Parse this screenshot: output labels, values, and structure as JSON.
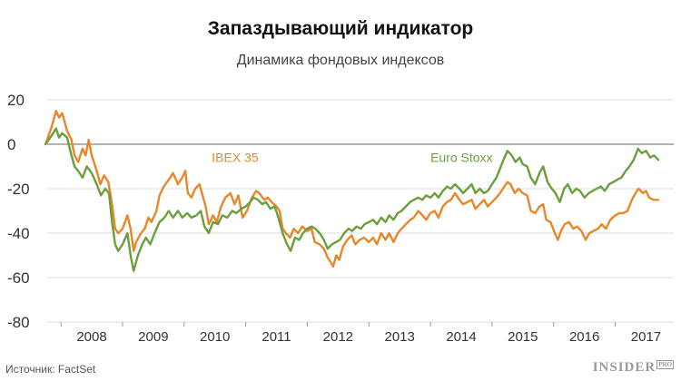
{
  "header": {
    "title": "Запаздывающий индикатор",
    "subtitle": "Динамика фондовых индексов"
  },
  "footer": {
    "source": "Источник: FactSet",
    "brand": "INSIDER",
    "brand_suffix": "PRO"
  },
  "chart_data": {
    "type": "line",
    "title": "Запаздывающий индикатор",
    "subtitle": "Динамика фондовых индексов",
    "xlabel": "",
    "ylabel": "",
    "xlim": [
      2007.6,
      2017.95
    ],
    "ylim": [
      -80,
      20
    ],
    "y_ticks": [
      20,
      0,
      -20,
      -40,
      -60,
      -80
    ],
    "x_ticks": [
      "2008",
      "2009",
      "2010",
      "2011",
      "2012",
      "2013",
      "2014",
      "2015",
      "2016",
      "2017"
    ],
    "grid": true,
    "series": [
      {
        "name": "IBEX 35",
        "color": "#e8862a",
        "points": [
          [
            2007.75,
            0
          ],
          [
            2007.85,
            8
          ],
          [
            2007.92,
            15
          ],
          [
            2007.97,
            12
          ],
          [
            2008.02,
            14
          ],
          [
            2008.1,
            6
          ],
          [
            2008.17,
            2
          ],
          [
            2008.22,
            -5
          ],
          [
            2008.28,
            -8
          ],
          [
            2008.35,
            -2
          ],
          [
            2008.4,
            -5
          ],
          [
            2008.45,
            2
          ],
          [
            2008.5,
            -5
          ],
          [
            2008.58,
            -12
          ],
          [
            2008.64,
            -18
          ],
          [
            2008.7,
            -14
          ],
          [
            2008.77,
            -17
          ],
          [
            2008.83,
            -27
          ],
          [
            2008.88,
            -38
          ],
          [
            2008.93,
            -40
          ],
          [
            2009.0,
            -38
          ],
          [
            2009.08,
            -32
          ],
          [
            2009.13,
            -38
          ],
          [
            2009.18,
            -48
          ],
          [
            2009.22,
            -44
          ],
          [
            2009.3,
            -40
          ],
          [
            2009.36,
            -38
          ],
          [
            2009.42,
            -33
          ],
          [
            2009.47,
            -35
          ],
          [
            2009.55,
            -30
          ],
          [
            2009.6,
            -23
          ],
          [
            2009.67,
            -19
          ],
          [
            2009.75,
            -16
          ],
          [
            2009.82,
            -13
          ],
          [
            2009.9,
            -18
          ],
          [
            2009.97,
            -15
          ],
          [
            2010.02,
            -12
          ],
          [
            2010.06,
            -22
          ],
          [
            2010.12,
            -24
          ],
          [
            2010.18,
            -20
          ],
          [
            2010.25,
            -18
          ],
          [
            2010.3,
            -23
          ],
          [
            2010.35,
            -28
          ],
          [
            2010.4,
            -36
          ],
          [
            2010.47,
            -32
          ],
          [
            2010.53,
            -35
          ],
          [
            2010.6,
            -28
          ],
          [
            2010.67,
            -24
          ],
          [
            2010.75,
            -22
          ],
          [
            2010.82,
            -27
          ],
          [
            2010.88,
            -23
          ],
          [
            2010.95,
            -33
          ],
          [
            2011.02,
            -30
          ],
          [
            2011.1,
            -24
          ],
          [
            2011.17,
            -21
          ],
          [
            2011.22,
            -22
          ],
          [
            2011.3,
            -25
          ],
          [
            2011.36,
            -24
          ],
          [
            2011.42,
            -26
          ],
          [
            2011.5,
            -28
          ],
          [
            2011.55,
            -30
          ],
          [
            2011.6,
            -38
          ],
          [
            2011.65,
            -40
          ],
          [
            2011.72,
            -42
          ],
          [
            2011.78,
            -38
          ],
          [
            2011.85,
            -40
          ],
          [
            2011.92,
            -37
          ],
          [
            2012.0,
            -39
          ],
          [
            2012.07,
            -38
          ],
          [
            2012.12,
            -44
          ],
          [
            2012.2,
            -45
          ],
          [
            2012.27,
            -47
          ],
          [
            2012.33,
            -51
          ],
          [
            2012.38,
            -53
          ],
          [
            2012.42,
            -55
          ],
          [
            2012.47,
            -50
          ],
          [
            2012.52,
            -52
          ],
          [
            2012.58,
            -46
          ],
          [
            2012.65,
            -43
          ],
          [
            2012.72,
            -41
          ],
          [
            2012.78,
            -45
          ],
          [
            2012.85,
            -43
          ],
          [
            2012.92,
            -42
          ],
          [
            2013.0,
            -44
          ],
          [
            2013.07,
            -42
          ],
          [
            2013.13,
            -45
          ],
          [
            2013.2,
            -40
          ],
          [
            2013.27,
            -43
          ],
          [
            2013.33,
            -40
          ],
          [
            2013.4,
            -44
          ],
          [
            2013.47,
            -40
          ],
          [
            2013.53,
            -38
          ],
          [
            2013.6,
            -36
          ],
          [
            2013.67,
            -34
          ],
          [
            2013.73,
            -33
          ],
          [
            2013.8,
            -30
          ],
          [
            2013.87,
            -32
          ],
          [
            2013.93,
            -34
          ],
          [
            2014.0,
            -31
          ],
          [
            2014.07,
            -30
          ],
          [
            2014.13,
            -33
          ],
          [
            2014.2,
            -28
          ],
          [
            2014.27,
            -26
          ],
          [
            2014.33,
            -25
          ],
          [
            2014.4,
            -22
          ],
          [
            2014.47,
            -25
          ],
          [
            2014.53,
            -27
          ],
          [
            2014.6,
            -26
          ],
          [
            2014.67,
            -25
          ],
          [
            2014.73,
            -29
          ],
          [
            2014.8,
            -27
          ],
          [
            2014.87,
            -25
          ],
          [
            2014.93,
            -28
          ],
          [
            2015.0,
            -26
          ],
          [
            2015.07,
            -24
          ],
          [
            2015.13,
            -22
          ],
          [
            2015.2,
            -19
          ],
          [
            2015.25,
            -17
          ],
          [
            2015.3,
            -18
          ],
          [
            2015.37,
            -22
          ],
          [
            2015.43,
            -20
          ],
          [
            2015.5,
            -22
          ],
          [
            2015.57,
            -23
          ],
          [
            2015.63,
            -30
          ],
          [
            2015.7,
            -31
          ],
          [
            2015.77,
            -28
          ],
          [
            2015.83,
            -27
          ],
          [
            2015.88,
            -34
          ],
          [
            2015.95,
            -35
          ],
          [
            2016.02,
            -40
          ],
          [
            2016.07,
            -43
          ],
          [
            2016.12,
            -39
          ],
          [
            2016.18,
            -36
          ],
          [
            2016.25,
            -35
          ],
          [
            2016.32,
            -38
          ],
          [
            2016.38,
            -37
          ],
          [
            2016.45,
            -39
          ],
          [
            2016.52,
            -43
          ],
          [
            2016.58,
            -40
          ],
          [
            2016.65,
            -39
          ],
          [
            2016.72,
            -38
          ],
          [
            2016.78,
            -36
          ],
          [
            2016.85,
            -38
          ],
          [
            2016.92,
            -34
          ],
          [
            2017.0,
            -32
          ],
          [
            2017.07,
            -31
          ],
          [
            2017.13,
            -31
          ],
          [
            2017.2,
            -30
          ],
          [
            2017.27,
            -25
          ],
          [
            2017.33,
            -22
          ],
          [
            2017.38,
            -20
          ],
          [
            2017.45,
            -22
          ],
          [
            2017.5,
            -21
          ],
          [
            2017.55,
            -24
          ],
          [
            2017.62,
            -25
          ],
          [
            2017.7,
            -25
          ]
        ]
      },
      {
        "name": "Euro Stoxx",
        "color": "#6b9e3c",
        "points": [
          [
            2007.75,
            0
          ],
          [
            2007.85,
            4
          ],
          [
            2007.92,
            7
          ],
          [
            2007.97,
            3
          ],
          [
            2008.02,
            5
          ],
          [
            2008.1,
            3
          ],
          [
            2008.17,
            -5
          ],
          [
            2008.22,
            -10
          ],
          [
            2008.28,
            -12
          ],
          [
            2008.35,
            -15
          ],
          [
            2008.42,
            -10
          ],
          [
            2008.5,
            -13
          ],
          [
            2008.58,
            -18
          ],
          [
            2008.65,
            -23
          ],
          [
            2008.72,
            -20
          ],
          [
            2008.78,
            -22
          ],
          [
            2008.83,
            -35
          ],
          [
            2008.88,
            -45
          ],
          [
            2008.93,
            -48
          ],
          [
            2009.0,
            -45
          ],
          [
            2009.08,
            -40
          ],
          [
            2009.13,
            -50
          ],
          [
            2009.18,
            -57
          ],
          [
            2009.25,
            -50
          ],
          [
            2009.32,
            -45
          ],
          [
            2009.38,
            -42
          ],
          [
            2009.45,
            -45
          ],
          [
            2009.52,
            -40
          ],
          [
            2009.6,
            -35
          ],
          [
            2009.68,
            -33
          ],
          [
            2009.75,
            -30
          ],
          [
            2009.82,
            -33
          ],
          [
            2009.9,
            -30
          ],
          [
            2009.97,
            -33
          ],
          [
            2010.05,
            -31
          ],
          [
            2010.12,
            -33
          ],
          [
            2010.2,
            -32
          ],
          [
            2010.27,
            -30
          ],
          [
            2010.33,
            -37
          ],
          [
            2010.4,
            -40
          ],
          [
            2010.47,
            -35
          ],
          [
            2010.55,
            -36
          ],
          [
            2010.62,
            -32
          ],
          [
            2010.7,
            -33
          ],
          [
            2010.78,
            -30
          ],
          [
            2010.85,
            -31
          ],
          [
            2010.93,
            -29
          ],
          [
            2011.0,
            -28
          ],
          [
            2011.07,
            -26
          ],
          [
            2011.13,
            -24
          ],
          [
            2011.2,
            -25
          ],
          [
            2011.27,
            -27
          ],
          [
            2011.33,
            -26
          ],
          [
            2011.4,
            -29
          ],
          [
            2011.47,
            -28
          ],
          [
            2011.53,
            -33
          ],
          [
            2011.6,
            -40
          ],
          [
            2011.67,
            -45
          ],
          [
            2011.73,
            -48
          ],
          [
            2011.8,
            -42
          ],
          [
            2011.87,
            -43
          ],
          [
            2011.93,
            -40
          ],
          [
            2012.0,
            -38
          ],
          [
            2012.07,
            -37
          ],
          [
            2012.13,
            -38
          ],
          [
            2012.2,
            -40
          ],
          [
            2012.27,
            -43
          ],
          [
            2012.33,
            -47
          ],
          [
            2012.4,
            -45
          ],
          [
            2012.47,
            -44
          ],
          [
            2012.53,
            -43
          ],
          [
            2012.6,
            -40
          ],
          [
            2012.67,
            -38
          ],
          [
            2012.73,
            -39
          ],
          [
            2012.8,
            -37
          ],
          [
            2012.87,
            -38
          ],
          [
            2012.93,
            -36
          ],
          [
            2013.0,
            -35
          ],
          [
            2013.07,
            -34
          ],
          [
            2013.13,
            -36
          ],
          [
            2013.2,
            -33
          ],
          [
            2013.27,
            -35
          ],
          [
            2013.33,
            -32
          ],
          [
            2013.4,
            -34
          ],
          [
            2013.47,
            -31
          ],
          [
            2013.53,
            -30
          ],
          [
            2013.6,
            -28
          ],
          [
            2013.67,
            -26
          ],
          [
            2013.73,
            -25
          ],
          [
            2013.8,
            -24
          ],
          [
            2013.87,
            -25
          ],
          [
            2013.93,
            -23
          ],
          [
            2014.0,
            -24
          ],
          [
            2014.07,
            -22
          ],
          [
            2014.13,
            -24
          ],
          [
            2014.2,
            -21
          ],
          [
            2014.27,
            -19
          ],
          [
            2014.33,
            -20
          ],
          [
            2014.4,
            -18
          ],
          [
            2014.47,
            -20
          ],
          [
            2014.53,
            -22
          ],
          [
            2014.6,
            -20
          ],
          [
            2014.67,
            -18
          ],
          [
            2014.73,
            -22
          ],
          [
            2014.8,
            -20
          ],
          [
            2014.87,
            -22
          ],
          [
            2014.93,
            -21
          ],
          [
            2015.0,
            -18
          ],
          [
            2015.07,
            -15
          ],
          [
            2015.13,
            -11
          ],
          [
            2015.2,
            -6
          ],
          [
            2015.25,
            -3
          ],
          [
            2015.32,
            -5
          ],
          [
            2015.38,
            -8
          ],
          [
            2015.45,
            -6
          ],
          [
            2015.5,
            -9
          ],
          [
            2015.57,
            -10
          ],
          [
            2015.63,
            -15
          ],
          [
            2015.7,
            -18
          ],
          [
            2015.77,
            -13
          ],
          [
            2015.83,
            -10
          ],
          [
            2015.9,
            -17
          ],
          [
            2015.97,
            -20
          ],
          [
            2016.03,
            -22
          ],
          [
            2016.1,
            -26
          ],
          [
            2016.17,
            -20
          ],
          [
            2016.23,
            -18
          ],
          [
            2016.3,
            -22
          ],
          [
            2016.37,
            -20
          ],
          [
            2016.43,
            -21
          ],
          [
            2016.5,
            -24
          ],
          [
            2016.57,
            -22
          ],
          [
            2016.63,
            -21
          ],
          [
            2016.7,
            -20
          ],
          [
            2016.77,
            -19
          ],
          [
            2016.83,
            -21
          ],
          [
            2016.9,
            -18
          ],
          [
            2016.97,
            -17
          ],
          [
            2017.03,
            -16
          ],
          [
            2017.1,
            -15
          ],
          [
            2017.17,
            -12
          ],
          [
            2017.23,
            -10
          ],
          [
            2017.3,
            -7
          ],
          [
            2017.37,
            -2
          ],
          [
            2017.43,
            -4
          ],
          [
            2017.5,
            -3
          ],
          [
            2017.57,
            -6
          ],
          [
            2017.63,
            -5
          ],
          [
            2017.7,
            -7
          ]
        ]
      }
    ],
    "series_labels": [
      {
        "text": "IBEX 35",
        "x": 2010.45,
        "y": -8
      },
      {
        "text": "Euro Stoxx",
        "x": 2014.0,
        "y": -8
      }
    ]
  }
}
